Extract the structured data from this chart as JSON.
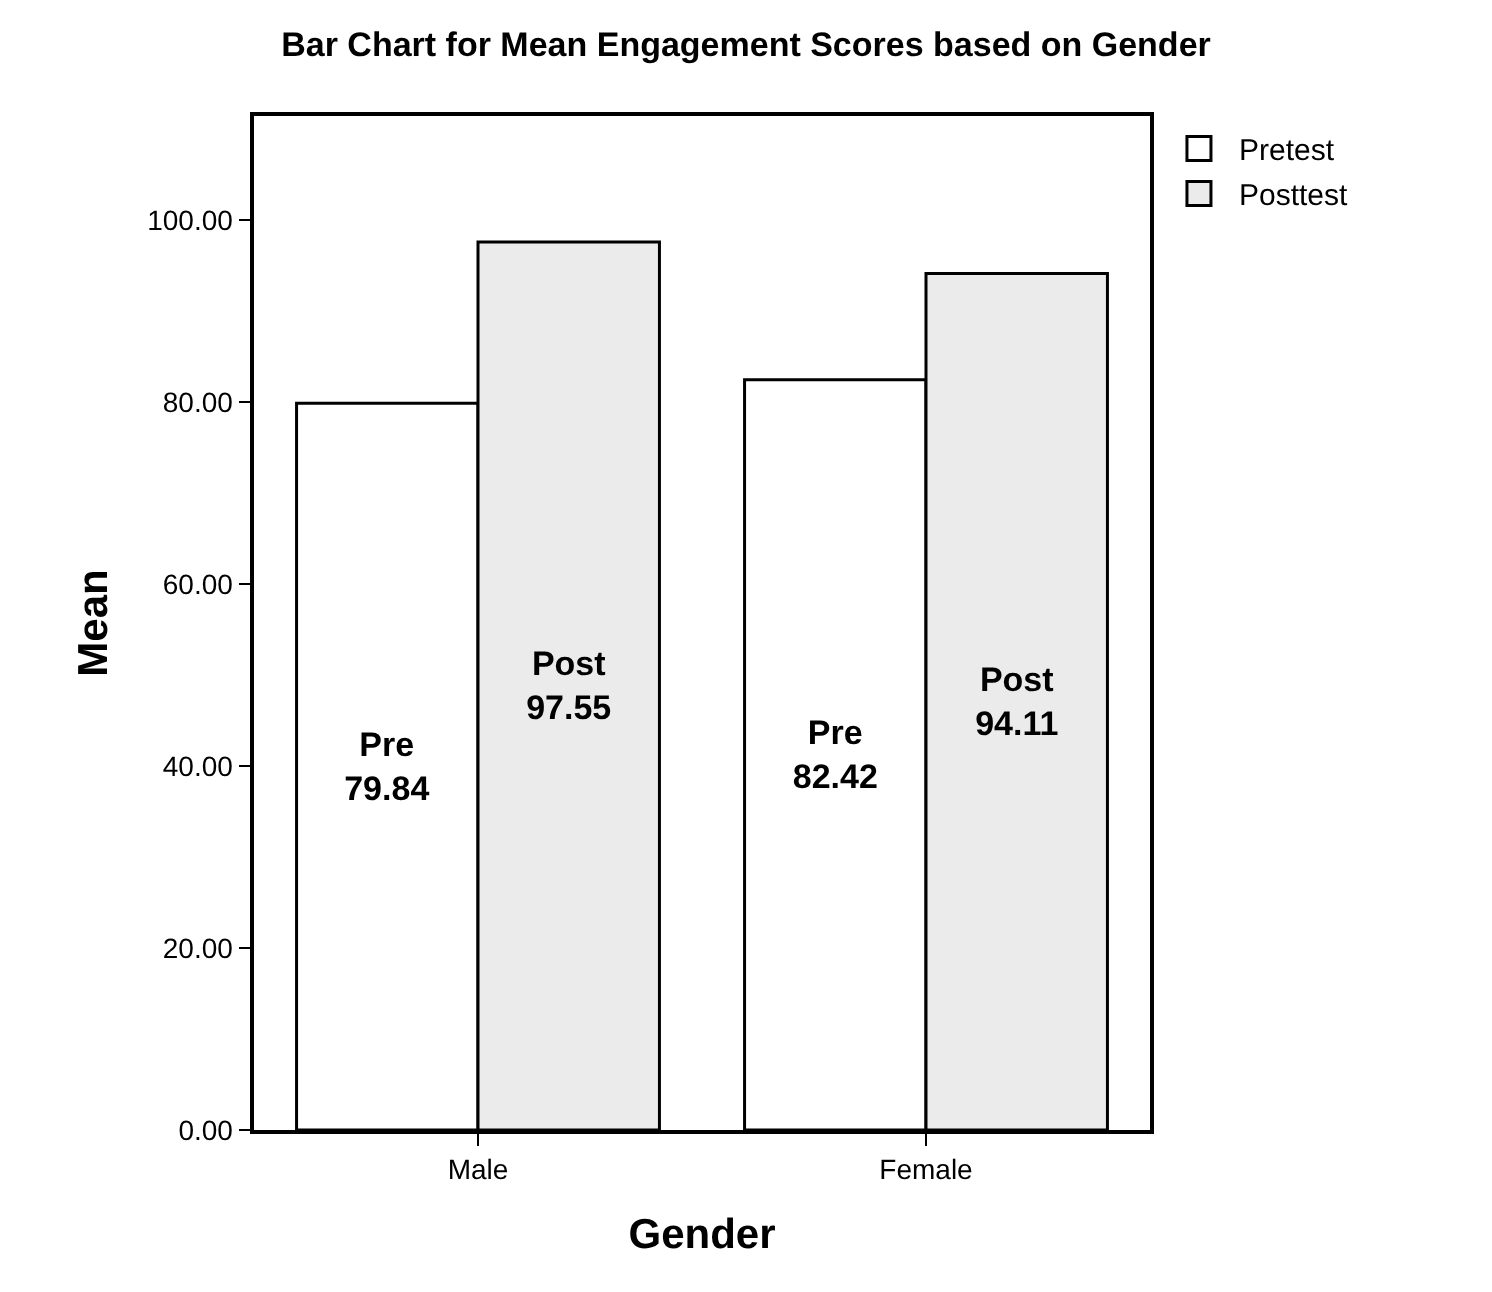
{
  "chart_data": {
    "type": "bar",
    "title": "Bar Chart for Mean Engagement Scores based on Gender",
    "xlabel": "Gender",
    "ylabel": "Mean",
    "categories": [
      "Male",
      "Female"
    ],
    "series": [
      {
        "name": "Pretest",
        "color": "#ffffff",
        "values": [
          79.84,
          82.42
        ],
        "value_labels": [
          "Pre\n79.84",
          "Pre\n82.42"
        ]
      },
      {
        "name": "Posttest",
        "color": "#ebebeb",
        "values": [
          97.55,
          94.11
        ],
        "value_labels": [
          "Post\n97.55",
          "Post\n94.11"
        ]
      }
    ],
    "ylim": [
      0,
      111.4
    ],
    "yticks": [
      {
        "value": 0,
        "label": "0.00"
      },
      {
        "value": 20,
        "label": "20.00"
      },
      {
        "value": 40,
        "label": "40.00"
      },
      {
        "value": 60,
        "label": "60.00"
      },
      {
        "value": 80,
        "label": "80.00"
      },
      {
        "value": 100,
        "label": "100.00"
      }
    ],
    "legend": "top right"
  }
}
